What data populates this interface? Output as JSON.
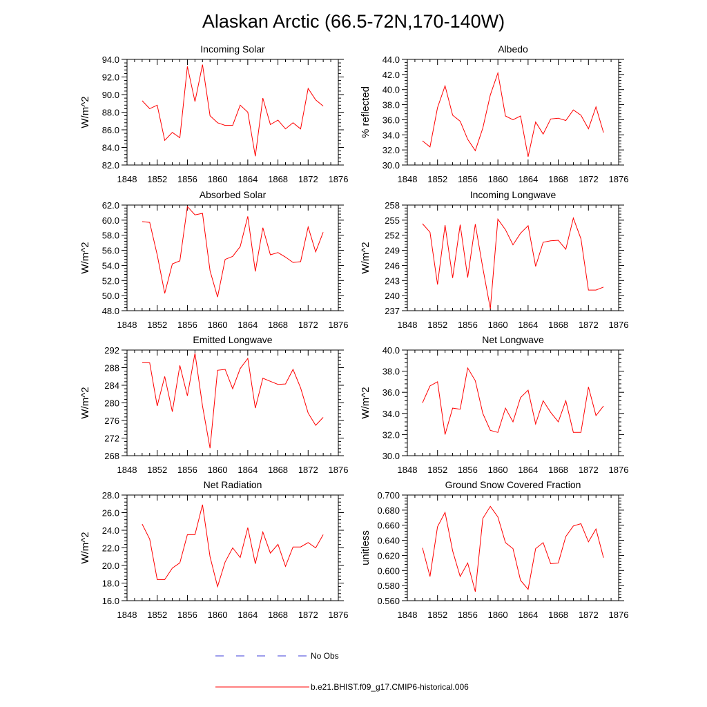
{
  "main_title": "Alaskan Arctic (66.5-72N,170-140W)",
  "legend": {
    "obs_label": "No Obs",
    "obs_color": "#3b3bd9",
    "model_label": "b.e21.BHIST.f09_g17.CMIP6-historical.006",
    "model_color": "#ff0000"
  },
  "chart_data": [
    {
      "type": "line",
      "title": "Incoming Solar",
      "ylabel": "W/m^2",
      "xlim": [
        1848,
        1876
      ],
      "ylim": [
        82,
        94
      ],
      "xticks": [
        1848,
        1852,
        1856,
        1860,
        1864,
        1868,
        1872,
        1876
      ],
      "xtick_labels": [
        "1848",
        "1852",
        "1856",
        "1860",
        "1864",
        "1868",
        "1872",
        "1876"
      ],
      "yticks": [
        82,
        84,
        86,
        88,
        90,
        92,
        94
      ],
      "ytick_labels": [
        "82.0",
        "84.0",
        "86.0",
        "88.0",
        "90.0",
        "92.0",
        "94.0"
      ],
      "x": [
        1850,
        1851,
        1852,
        1853,
        1854,
        1855,
        1856,
        1857,
        1858,
        1859,
        1860,
        1861,
        1862,
        1863,
        1864,
        1865,
        1866,
        1867,
        1868,
        1869,
        1870,
        1871,
        1872,
        1873,
        1874
      ],
      "y": [
        89.3,
        88.4,
        88.8,
        84.8,
        85.7,
        85.1,
        93.2,
        89.2,
        93.4,
        87.6,
        86.8,
        86.5,
        86.5,
        88.8,
        88.0,
        83.0,
        89.6,
        86.6,
        87.1,
        86.1,
        86.8,
        86.1,
        90.7,
        89.4,
        88.7
      ]
    },
    {
      "type": "line",
      "title": "Albedo",
      "ylabel": "% reflected",
      "xlim": [
        1848,
        1876
      ],
      "ylim": [
        30,
        44
      ],
      "xticks": [
        1848,
        1852,
        1856,
        1860,
        1864,
        1868,
        1872,
        1876
      ],
      "xtick_labels": [
        "1848",
        "1852",
        "1856",
        "1860",
        "1864",
        "1868",
        "1872",
        "1876"
      ],
      "yticks": [
        30,
        32,
        34,
        36,
        38,
        40,
        42,
        44
      ],
      "ytick_labels": [
        "30.0",
        "32.0",
        "34.0",
        "36.0",
        "38.0",
        "40.0",
        "42.0",
        "44.0"
      ],
      "x": [
        1850,
        1851,
        1852,
        1853,
        1854,
        1855,
        1856,
        1857,
        1858,
        1859,
        1860,
        1861,
        1862,
        1863,
        1864,
        1865,
        1866,
        1867,
        1868,
        1869,
        1870,
        1871,
        1872,
        1873,
        1874
      ],
      "y": [
        33.2,
        32.4,
        37.6,
        40.5,
        36.6,
        35.8,
        33.4,
        31.9,
        34.9,
        39.3,
        42.2,
        36.5,
        36.0,
        36.5,
        31.1,
        35.7,
        34.1,
        36.1,
        36.2,
        35.9,
        37.3,
        36.6,
        34.8,
        37.7,
        34.3
      ]
    },
    {
      "type": "line",
      "title": "Absorbed Solar",
      "ylabel": "W/m^2",
      "xlim": [
        1848,
        1876
      ],
      "ylim": [
        48,
        62
      ],
      "xticks": [
        1848,
        1852,
        1856,
        1860,
        1864,
        1868,
        1872,
        1876
      ],
      "xtick_labels": [
        "1848",
        "1852",
        "1856",
        "1860",
        "1864",
        "1868",
        "1872",
        "1876"
      ],
      "yticks": [
        48,
        50,
        52,
        54,
        56,
        58,
        60,
        62
      ],
      "ytick_labels": [
        "48.0",
        "50.0",
        "52.0",
        "54.0",
        "56.0",
        "58.0",
        "60.0",
        "62.0"
      ],
      "x": [
        1850,
        1851,
        1852,
        1853,
        1854,
        1855,
        1856,
        1857,
        1858,
        1859,
        1860,
        1861,
        1862,
        1863,
        1864,
        1865,
        1866,
        1867,
        1868,
        1869,
        1870,
        1871,
        1872,
        1873,
        1874
      ],
      "y": [
        59.8,
        59.7,
        55.4,
        50.3,
        54.2,
        54.6,
        61.8,
        60.7,
        60.9,
        53.3,
        49.8,
        54.8,
        55.2,
        56.5,
        60.5,
        53.2,
        59.0,
        55.4,
        55.7,
        55.1,
        54.4,
        54.5,
        59.1,
        55.8,
        58.4
      ]
    },
    {
      "type": "line",
      "title": "Incoming Longwave",
      "ylabel": "W/m^2",
      "xlim": [
        1848,
        1876
      ],
      "ylim": [
        237,
        258
      ],
      "xticks": [
        1848,
        1852,
        1856,
        1860,
        1864,
        1868,
        1872,
        1876
      ],
      "xtick_labels": [
        "1848",
        "1852",
        "1856",
        "1860",
        "1864",
        "1868",
        "1872",
        "1876"
      ],
      "yticks": [
        237,
        240,
        243,
        246,
        249,
        252,
        255,
        258
      ],
      "ytick_labels": [
        "237",
        "240",
        "243",
        "246",
        "249",
        "252",
        "255",
        "258"
      ],
      "x": [
        1850,
        1851,
        1852,
        1853,
        1854,
        1855,
        1856,
        1857,
        1858,
        1859,
        1860,
        1861,
        1862,
        1863,
        1864,
        1865,
        1866,
        1867,
        1868,
        1869,
        1870,
        1871,
        1872,
        1873,
        1874
      ],
      "y": [
        254.3,
        252.6,
        242.2,
        254.0,
        243.5,
        254.1,
        243.6,
        254.2,
        245.5,
        237.4,
        255.2,
        253.1,
        250.1,
        252.4,
        253.9,
        245.8,
        250.6,
        250.9,
        251.0,
        249.2,
        255.4,
        251.3,
        241.1,
        241.1,
        241.7
      ]
    },
    {
      "type": "line",
      "title": "Emitted Longwave",
      "ylabel": "W/m^2",
      "xlim": [
        1848,
        1876
      ],
      "ylim": [
        268,
        292
      ],
      "xticks": [
        1848,
        1852,
        1856,
        1860,
        1864,
        1868,
        1872,
        1876
      ],
      "xtick_labels": [
        "1848",
        "1852",
        "1856",
        "1860",
        "1864",
        "1868",
        "1872",
        "1876"
      ],
      "yticks": [
        268,
        272,
        276,
        280,
        284,
        288,
        292
      ],
      "ytick_labels": [
        "268",
        "272",
        "276",
        "280",
        "284",
        "288",
        "292"
      ],
      "x": [
        1850,
        1851,
        1852,
        1853,
        1854,
        1855,
        1856,
        1857,
        1858,
        1859,
        1860,
        1861,
        1862,
        1863,
        1864,
        1865,
        1866,
        1867,
        1868,
        1869,
        1870,
        1871,
        1872,
        1873,
        1874
      ],
      "y": [
        289.1,
        289.1,
        279.3,
        286.0,
        278.0,
        288.5,
        281.6,
        291.3,
        279.3,
        269.7,
        287.4,
        287.6,
        283.2,
        287.8,
        290.1,
        278.8,
        285.6,
        284.9,
        284.2,
        284.3,
        287.6,
        283.4,
        277.7,
        274.9,
        276.7
      ]
    },
    {
      "type": "line",
      "title": "Net Longwave",
      "ylabel": "W/m^2",
      "xlim": [
        1848,
        1876
      ],
      "ylim": [
        30,
        40
      ],
      "xticks": [
        1848,
        1852,
        1856,
        1860,
        1864,
        1868,
        1872,
        1876
      ],
      "xtick_labels": [
        "1848",
        "1852",
        "1856",
        "1860",
        "1864",
        "1868",
        "1872",
        "1876"
      ],
      "yticks": [
        30,
        32,
        34,
        36,
        38,
        40
      ],
      "ytick_labels": [
        "30.0",
        "32.0",
        "34.0",
        "36.0",
        "38.0",
        "40.0"
      ],
      "x": [
        1850,
        1851,
        1852,
        1853,
        1854,
        1855,
        1856,
        1857,
        1858,
        1859,
        1860,
        1861,
        1862,
        1863,
        1864,
        1865,
        1866,
        1867,
        1868,
        1869,
        1870,
        1871,
        1872,
        1873,
        1874
      ],
      "y": [
        35.0,
        36.6,
        37.0,
        32.0,
        34.5,
        34.4,
        38.3,
        37.1,
        34.0,
        32.4,
        32.2,
        34.5,
        33.2,
        35.5,
        36.2,
        33.0,
        35.2,
        34.1,
        33.2,
        35.2,
        32.2,
        32.2,
        36.5,
        33.8,
        34.7
      ]
    },
    {
      "type": "line",
      "title": "Net Radiation",
      "ylabel": "W/m^2",
      "xlim": [
        1848,
        1876
      ],
      "ylim": [
        16,
        28
      ],
      "xticks": [
        1848,
        1852,
        1856,
        1860,
        1864,
        1868,
        1872,
        1876
      ],
      "xtick_labels": [
        "1848",
        "1852",
        "1856",
        "1860",
        "1864",
        "1868",
        "1872",
        "1876"
      ],
      "yticks": [
        16,
        18,
        20,
        22,
        24,
        26,
        28
      ],
      "ytick_labels": [
        "16.0",
        "18.0",
        "20.0",
        "22.0",
        "24.0",
        "26.0",
        "28.0"
      ],
      "x": [
        1850,
        1851,
        1852,
        1853,
        1854,
        1855,
        1856,
        1857,
        1858,
        1859,
        1860,
        1861,
        1862,
        1863,
        1864,
        1865,
        1866,
        1867,
        1868,
        1869,
        1870,
        1871,
        1872,
        1873,
        1874
      ],
      "y": [
        24.7,
        23.0,
        18.4,
        18.4,
        19.7,
        20.3,
        23.5,
        23.5,
        26.9,
        21.0,
        17.6,
        20.4,
        22.0,
        20.9,
        24.3,
        20.2,
        23.8,
        21.4,
        22.4,
        19.9,
        22.1,
        22.1,
        22.6,
        22.0,
        23.5
      ]
    },
    {
      "type": "line",
      "title": "Ground Snow Covered Fraction",
      "ylabel": "unitless",
      "xlim": [
        1848,
        1876
      ],
      "ylim": [
        0.56,
        0.7
      ],
      "xticks": [
        1848,
        1852,
        1856,
        1860,
        1864,
        1868,
        1872,
        1876
      ],
      "xtick_labels": [
        "1848",
        "1852",
        "1856",
        "1860",
        "1864",
        "1868",
        "1872",
        "1876"
      ],
      "yticks": [
        0.56,
        0.58,
        0.6,
        0.62,
        0.64,
        0.66,
        0.68,
        0.7
      ],
      "ytick_labels": [
        "0.560",
        "0.580",
        "0.600",
        "0.620",
        "0.640",
        "0.660",
        "0.680",
        "0.700"
      ],
      "x": [
        1850,
        1851,
        1852,
        1853,
        1854,
        1855,
        1856,
        1857,
        1858,
        1859,
        1860,
        1861,
        1862,
        1863,
        1864,
        1865,
        1866,
        1867,
        1868,
        1869,
        1870,
        1871,
        1872,
        1873,
        1874
      ],
      "y": [
        0.63,
        0.592,
        0.658,
        0.677,
        0.626,
        0.592,
        0.61,
        0.572,
        0.669,
        0.685,
        0.671,
        0.637,
        0.629,
        0.587,
        0.575,
        0.629,
        0.637,
        0.609,
        0.61,
        0.645,
        0.659,
        0.662,
        0.638,
        0.655,
        0.617
      ]
    }
  ]
}
